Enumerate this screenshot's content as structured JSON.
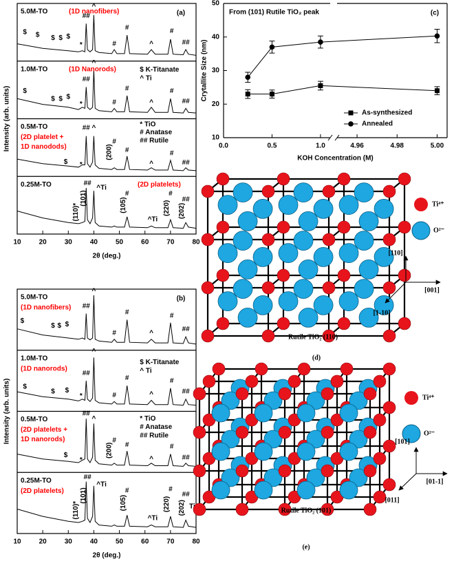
{
  "chart_data": [
    {
      "type": "line",
      "panel_label": "(a)",
      "xlabel": "2θ (deg.)",
      "ylabel": "Intensity (arb. units)",
      "xlim": [
        10,
        80
      ],
      "xticks": [
        10,
        20,
        30,
        40,
        50,
        60,
        70,
        80
      ],
      "ylim": [
        0,
        100
      ],
      "x": [
        10,
        20,
        30,
        34,
        35.5,
        36.5,
        37,
        37.5,
        38.5,
        39.5,
        40,
        40.5,
        42,
        47,
        48,
        49,
        52,
        53,
        54,
        61,
        62.5,
        64,
        69,
        70,
        71,
        75,
        76,
        77,
        80
      ],
      "subplots": [
        {
          "name": "5.0M-TO",
          "notes": [
            "(1D nanofibers)"
          ],
          "color": "red",
          "values": [
            30,
            22,
            18,
            16,
            18,
            16,
            65,
            20,
            16,
            20,
            80,
            18,
            15,
            13,
            20,
            13,
            13,
            45,
            13,
            12,
            20,
            12,
            12,
            38,
            12,
            11,
            20,
            12,
            10
          ],
          "annotations": [
            {
              "text": "$",
              "x": 13,
              "y": 50
            },
            {
              "text": "$",
              "x": 18,
              "y": 45
            },
            {
              "text": "$",
              "x": 24,
              "y": 40
            },
            {
              "text": "$",
              "x": 27,
              "y": 40
            },
            {
              "text": "$",
              "x": 30,
              "y": 42
            },
            {
              "text": "*",
              "x": 35,
              "y": 28
            },
            {
              "text": "##",
              "x": 37,
              "y": 78
            },
            {
              "text": "^",
              "x": 40,
              "y": 95
            },
            {
              "text": "#",
              "x": 48,
              "y": 30
            },
            {
              "text": "#",
              "x": 53,
              "y": 58
            },
            {
              "text": "^",
              "x": 62.5,
              "y": 30
            },
            {
              "text": "#",
              "x": 70.5,
              "y": 52
            },
            {
              "text": "##",
              "x": 76,
              "y": 32
            }
          ]
        },
        {
          "name": "1.0M-TO",
          "notes": [
            "(1D Nanorods)"
          ],
          "color": "red",
          "values": [
            35,
            25,
            20,
            16,
            20,
            18,
            55,
            20,
            16,
            20,
            85,
            18,
            14,
            12,
            18,
            12,
            12,
            40,
            12,
            11,
            20,
            11,
            11,
            35,
            11,
            10,
            18,
            11,
            10
          ],
          "annotations": [
            {
              "text": "$",
              "x": 13,
              "y": 48
            },
            {
              "text": "$",
              "x": 24,
              "y": 34
            },
            {
              "text": "$",
              "x": 27,
              "y": 34
            },
            {
              "text": "$",
              "x": 30,
              "y": 38
            },
            {
              "text": "*",
              "x": 35,
              "y": 25
            },
            {
              "text": "##",
              "x": 37,
              "y": 68
            },
            {
              "text": "^",
              "x": 40,
              "y": 97
            },
            {
              "text": "#",
              "x": 48,
              "y": 28
            },
            {
              "text": "#",
              "x": 53,
              "y": 52
            },
            {
              "text": "^",
              "x": 62.5,
              "y": 28
            },
            {
              "text": "#",
              "x": 70.5,
              "y": 48
            },
            {
              "text": "##",
              "x": 76,
              "y": 30
            },
            {
              "text": "$ K-Titanate",
              "x": 58,
              "y": 85,
              "align": "left"
            },
            {
              "text": "^ Ti",
              "x": 58,
              "y": 70,
              "align": "left"
            }
          ]
        },
        {
          "name": "0.5M-TO",
          "notes": [
            "(2D platelet +",
            "1D nanodods)"
          ],
          "color": "red",
          "values": [
            30,
            22,
            18,
            16,
            20,
            20,
            70,
            22,
            16,
            25,
            70,
            20,
            14,
            12,
            15,
            12,
            12,
            35,
            12,
            11,
            15,
            11,
            11,
            28,
            11,
            10,
            15,
            11,
            10
          ],
          "annotations": [
            {
              "text": "$",
              "x": 29,
              "y": 25
            },
            {
              "text": "*",
              "x": 35,
              "y": 20
            },
            {
              "text": "##",
              "x": 37,
              "y": 84
            },
            {
              "text": "^",
              "x": 40,
              "y": 84
            },
            {
              "text": "(200)",
              "x": 46,
              "y": 42,
              "vertical": true
            },
            {
              "text": "#",
              "x": 48,
              "y": 60
            },
            {
              "text": "#",
              "x": 53,
              "y": 45
            },
            {
              "text": "^",
              "x": 62.5,
              "y": 22
            },
            {
              "text": "#",
              "x": 70.5,
              "y": 40
            },
            {
              "text": "##",
              "x": 76,
              "y": 24
            },
            {
              "text": "* TiO",
              "x": 58,
              "y": 90,
              "align": "left"
            },
            {
              "text": "# Anatase",
              "x": 58,
              "y": 76,
              "align": "left"
            },
            {
              "text": "## Rutile",
              "x": 58,
              "y": 62,
              "align": "left"
            }
          ]
        },
        {
          "name": "0.25M-TO",
          "notes": [
            "(2D platelets)"
          ],
          "color": "red",
          "values": [
            40,
            28,
            20,
            18,
            20,
            22,
            80,
            25,
            18,
            28,
            75,
            20,
            14,
            12,
            14,
            12,
            12,
            30,
            12,
            11,
            14,
            11,
            11,
            25,
            11,
            10,
            20,
            12,
            10
          ],
          "annotations": [
            {
              "text": "(110)*",
              "x": 33,
              "y": 38,
              "vertical": true
            },
            {
              "text": "(101)",
              "x": 36,
              "y": 62,
              "vertical": true
            },
            {
              "text": "##",
              "x": 37.5,
              "y": 88
            },
            {
              "text": "^Ti",
              "x": 43,
              "y": 80
            },
            {
              "text": "(105)",
              "x": 51.5,
              "y": 50,
              "vertical": true
            },
            {
              "text": "#",
              "x": 53,
              "y": 70
            },
            {
              "text": "^Ti",
              "x": 63,
              "y": 25
            },
            {
              "text": "(220)",
              "x": 68.5,
              "y": 45,
              "vertical": true
            },
            {
              "text": "#",
              "x": 70,
              "y": 70
            },
            {
              "text": "(202)",
              "x": 74.5,
              "y": 40,
              "vertical": true
            },
            {
              "text": "##",
              "x": 76,
              "y": 60
            }
          ]
        }
      ]
    },
    {
      "type": "line",
      "panel_label": "(b)",
      "xlabel": "2θ (deg.)",
      "ylabel": "Intensity (arb. units)",
      "xlim": [
        10,
        80
      ],
      "xticks": [
        10,
        20,
        30,
        40,
        50,
        60,
        70,
        80
      ],
      "ylim": [
        0,
        100
      ],
      "x": [
        10,
        20,
        30,
        34,
        35.5,
        36.5,
        37,
        37.5,
        38.5,
        39.5,
        40,
        40.5,
        42,
        47,
        48,
        49,
        52,
        53,
        54,
        61,
        62.5,
        64,
        69,
        70,
        71,
        75,
        76,
        77,
        80
      ],
      "subplots": [
        {
          "name": "5.0M-TO",
          "notes": [
            "(1D nanofibers)"
          ],
          "color": "red",
          "values": [
            35,
            25,
            20,
            18,
            20,
            18,
            60,
            20,
            17,
            20,
            90,
            18,
            15,
            13,
            18,
            13,
            13,
            50,
            13,
            12,
            18,
            12,
            12,
            45,
            12,
            11,
            22,
            12,
            10
          ],
          "annotations": [
            {
              "text": "$",
              "x": 12,
              "y": 48
            },
            {
              "text": "$",
              "x": 24,
              "y": 40
            },
            {
              "text": "$",
              "x": 26.5,
              "y": 40
            },
            {
              "text": "$",
              "x": 29.5,
              "y": 42
            },
            {
              "text": "##",
              "x": 37,
              "y": 72
            },
            {
              "text": "^",
              "x": 40,
              "y": 97
            },
            {
              "text": "#",
              "x": 48,
              "y": 28
            },
            {
              "text": "#",
              "x": 53,
              "y": 62
            },
            {
              "text": "^",
              "x": 62.5,
              "y": 28
            },
            {
              "text": "#",
              "x": 70.5,
              "y": 56
            },
            {
              "text": "##",
              "x": 76,
              "y": 34
            }
          ]
        },
        {
          "name": "1.0M-TO",
          "notes": [
            "(1D nanorods)"
          ],
          "color": "red",
          "values": [
            32,
            24,
            20,
            17,
            20,
            18,
            50,
            20,
            16,
            22,
            88,
            18,
            14,
            12,
            16,
            12,
            12,
            42,
            12,
            11,
            18,
            11,
            11,
            38,
            11,
            10,
            20,
            11,
            10
          ],
          "annotations": [
            {
              "text": "$",
              "x": 13,
              "y": 40
            },
            {
              "text": "$",
              "x": 24,
              "y": 32
            },
            {
              "text": "$",
              "x": 29.5,
              "y": 34
            },
            {
              "text": "*",
              "x": 35,
              "y": 25
            },
            {
              "text": "##",
              "x": 37,
              "y": 62
            },
            {
              "text": "^",
              "x": 40,
              "y": 98
            },
            {
              "text": "#",
              "x": 48,
              "y": 26
            },
            {
              "text": "#",
              "x": 53,
              "y": 54
            },
            {
              "text": "^",
              "x": 62.5,
              "y": 28
            },
            {
              "text": "#",
              "x": 70.5,
              "y": 50
            },
            {
              "text": "##",
              "x": 76,
              "y": 32
            },
            {
              "text": "$ K-Titanate",
              "x": 58,
              "y": 80,
              "align": "left"
            },
            {
              "text": "^ Ti",
              "x": 58,
              "y": 66,
              "align": "left"
            }
          ]
        },
        {
          "name": "0.5M-TO",
          "notes": [
            "(2D platelets +",
            "1D nanorods)"
          ],
          "color": "red",
          "values": [
            30,
            22,
            18,
            16,
            20,
            22,
            88,
            22,
            16,
            25,
            80,
            20,
            14,
            12,
            15,
            12,
            12,
            35,
            12,
            11,
            15,
            11,
            11,
            30,
            11,
            10,
            15,
            11,
            10
          ],
          "annotations": [
            {
              "text": "$",
              "x": 29,
              "y": 28
            },
            {
              "text": "*",
              "x": 35,
              "y": 20
            },
            {
              "text": "##",
              "x": 37,
              "y": 96
            },
            {
              "text": "^",
              "x": 40,
              "y": 88
            },
            {
              "text": "(200)",
              "x": 46,
              "y": 36,
              "vertical": true
            },
            {
              "text": "#",
              "x": 48,
              "y": 52
            },
            {
              "text": "#",
              "x": 53,
              "y": 45
            },
            {
              "text": "^",
              "x": 62.5,
              "y": 22
            },
            {
              "text": "#",
              "x": 70.5,
              "y": 42
            },
            {
              "text": "##",
              "x": 76,
              "y": 24
            },
            {
              "text": "* TiO",
              "x": 58,
              "y": 88,
              "align": "left"
            },
            {
              "text": "# Anatase",
              "x": 58,
              "y": 74,
              "align": "left"
            },
            {
              "text": "## Rutile",
              "x": 58,
              "y": 60,
              "align": "left"
            }
          ]
        },
        {
          "name": "0.25M-TO",
          "notes": [
            "(2D platelets)"
          ],
          "color": "red",
          "values": [
            40,
            28,
            20,
            18,
            20,
            22,
            85,
            25,
            18,
            28,
            78,
            20,
            14,
            12,
            14,
            12,
            12,
            30,
            12,
            11,
            14,
            11,
            11,
            28,
            11,
            10,
            22,
            12,
            10
          ],
          "annotations": [
            {
              "text": "(110)*",
              "x": 33,
              "y": 38,
              "vertical": true
            },
            {
              "text": "(101)",
              "x": 36,
              "y": 62,
              "vertical": true
            },
            {
              "text": "##",
              "x": 37.5,
              "y": 92
            },
            {
              "text": "^Ti",
              "x": 43,
              "y": 80
            },
            {
              "text": "(105)",
              "x": 51.5,
              "y": 50,
              "vertical": true
            },
            {
              "text": "#",
              "x": 53,
              "y": 70
            },
            {
              "text": "^Ti",
              "x": 63,
              "y": 25
            },
            {
              "text": "(220)",
              "x": 68.5,
              "y": 48,
              "vertical": true
            },
            {
              "text": "#",
              "x": 70,
              "y": 72
            },
            {
              "text": "(202)",
              "x": 74.5,
              "y": 42,
              "vertical": true
            },
            {
              "text": "##",
              "x": 76,
              "y": 64
            },
            {
              "text": "Ti",
              "x": 78.5,
              "y": 44
            }
          ]
        }
      ]
    },
    {
      "type": "line",
      "panel_label": "(c)",
      "title": "From (101) Rutile TiO₂ peak",
      "xlabel": "KOH Concentration (M)",
      "ylabel": "Crytallite Size (nm)",
      "xlim": [
        [
          0,
          1.1
        ],
        [
          4.95,
          5.005
        ]
      ],
      "xticks": [
        {
          "value": 0,
          "label": "0.0"
        },
        0.5,
        {
          "value": 1,
          "label": "1.0"
        },
        4.96,
        4.98,
        {
          "value": 5,
          "label": "5.00"
        }
      ],
      "ylim": [
        10,
        50
      ],
      "yticks": [
        10,
        20,
        30,
        40,
        50
      ],
      "legend": "lower right",
      "x": [
        0.25,
        0.5,
        1.0,
        5.0
      ],
      "series": [
        {
          "name": "As-synthesized",
          "marker": "square",
          "color": "#000",
          "values": [
            23,
            23,
            25.5,
            24
          ],
          "errors": [
            1.3,
            1.2,
            1.3,
            1.2
          ]
        },
        {
          "name": "Annealed",
          "marker": "circle",
          "color": "#000",
          "values": [
            28,
            37,
            38.5,
            40.3
          ],
          "errors": [
            1.5,
            1.8,
            1.8,
            2
          ]
        }
      ]
    }
  ],
  "diagrams": [
    {
      "label": "(d)",
      "caption": "Rutile TiO₂ (110)",
      "species": [
        "Ti⁴⁺",
        "O²⁻"
      ],
      "directions": [
        "[110]",
        "[001]",
        "[1-10]"
      ]
    },
    {
      "label": "(e)",
      "caption": "Rutile TiO₂ (101)",
      "species": [
        "Ti⁴⁺",
        "O²⁻"
      ],
      "directions": [
        "[101]",
        "[01-1]",
        "[011]"
      ]
    }
  ]
}
